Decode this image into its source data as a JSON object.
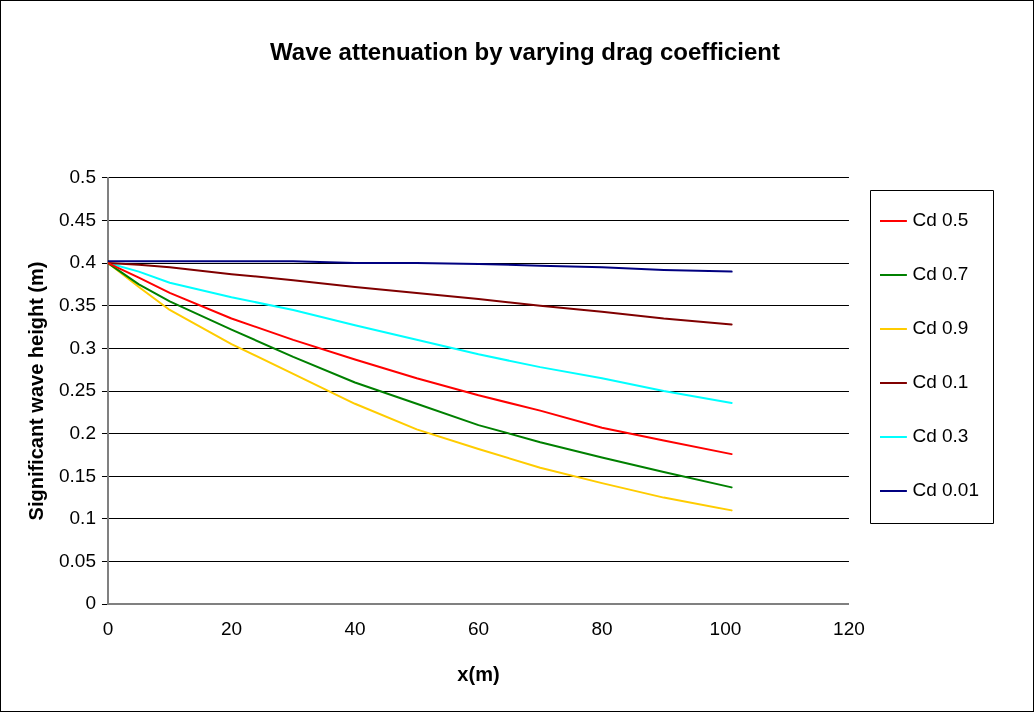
{
  "chart_data": {
    "type": "line",
    "title": "Wave attenuation by varying drag coefficient",
    "xlabel": "x(m)",
    "ylabel": "Significant wave height (m)",
    "x": [
      0,
      5,
      10,
      20,
      30,
      40,
      50,
      60,
      70,
      80,
      90,
      101
    ],
    "series": [
      {
        "name": "Cd 0.5",
        "color": "#ff0000",
        "values": [
          0.4,
          0.383,
          0.365,
          0.335,
          0.31,
          0.287,
          0.265,
          0.245,
          0.227,
          0.207,
          0.192,
          0.176
        ]
      },
      {
        "name": "Cd 0.7",
        "color": "#008000",
        "values": [
          0.4,
          0.375,
          0.355,
          0.322,
          0.29,
          0.26,
          0.235,
          0.21,
          0.19,
          0.172,
          0.155,
          0.137
        ]
      },
      {
        "name": "Cd 0.9",
        "color": "#ffcc00",
        "values": [
          0.4,
          0.372,
          0.345,
          0.305,
          0.27,
          0.235,
          0.205,
          0.182,
          0.16,
          0.142,
          0.125,
          0.11
        ]
      },
      {
        "name": "Cd 0.1",
        "color": "#800000",
        "values": [
          0.4,
          0.398,
          0.395,
          0.387,
          0.38,
          0.372,
          0.365,
          0.358,
          0.35,
          0.343,
          0.335,
          0.328
        ]
      },
      {
        "name": "Cd 0.3",
        "color": "#00ffff",
        "values": [
          0.4,
          0.39,
          0.377,
          0.36,
          0.345,
          0.327,
          0.31,
          0.293,
          0.278,
          0.265,
          0.25,
          0.236
        ]
      },
      {
        "name": "Cd 0.01",
        "color": "#000080",
        "values": [
          0.402,
          0.402,
          0.402,
          0.402,
          0.402,
          0.4,
          0.4,
          0.399,
          0.397,
          0.395,
          0.392,
          0.39
        ]
      }
    ],
    "xlim": [
      0,
      120
    ],
    "xticks": [
      0,
      20,
      40,
      60,
      80,
      100,
      120
    ],
    "ylim": [
      0,
      0.5
    ],
    "yticks": [
      0,
      0.05,
      0.1,
      0.15,
      0.2,
      0.25,
      0.3,
      0.35,
      0.4,
      0.45,
      0.5
    ],
    "grid": "y",
    "legend": "right",
    "marker": "none",
    "line_style": "solid"
  }
}
